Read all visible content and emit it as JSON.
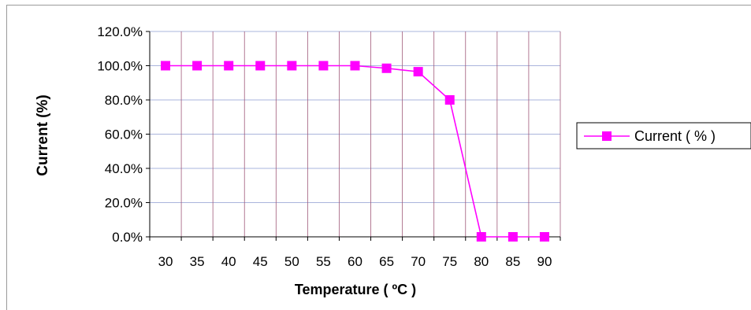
{
  "chart_data": {
    "type": "line",
    "title": "",
    "xlabel": "Temperature ( ºC )",
    "ylabel": "Current  (%)",
    "categories": [
      "30",
      "35",
      "40",
      "45",
      "50",
      "55",
      "60",
      "65",
      "70",
      "75",
      "80",
      "85",
      "90"
    ],
    "series": [
      {
        "name": "Current ( % )",
        "values": [
          100,
          100,
          100,
          100,
          100,
          100,
          100,
          98.5,
          96.5,
          80,
          0,
          0,
          0
        ]
      }
    ],
    "y_tick_labels": [
      "0.0%",
      "20.0%",
      "40.0%",
      "60.0%",
      "80.0%",
      "100.0%",
      "120.0%"
    ],
    "ylim": [
      0,
      120
    ],
    "y_step": 20,
    "grid": true,
    "legend_position": "right",
    "colors": {
      "series": "#ff00ff",
      "grid_horizontal": "#aab4dc",
      "grid_vertical": "#a05a7a",
      "axis": "#000000"
    }
  }
}
